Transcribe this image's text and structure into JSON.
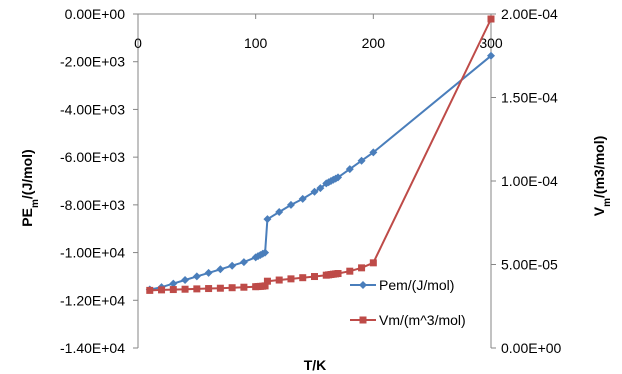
{
  "chart_data": {
    "type": "line",
    "xlabel": "T/K",
    "ylabel": {
      "main": "PE",
      "sub": "m",
      "rest": "/(J/mol)"
    },
    "y2label": {
      "main": "V",
      "sub": "m",
      "rest": "/(m3/mol)"
    },
    "xlim": [
      0,
      300
    ],
    "ylim": [
      -14000,
      0
    ],
    "y2lim": [
      0,
      0.0002
    ],
    "x_ticks": [
      0,
      100,
      200,
      300
    ],
    "x_tick_labels": [
      "0",
      "100",
      "200",
      "300"
    ],
    "y_ticks": [
      0,
      -2000,
      -4000,
      -6000,
      -8000,
      -10000,
      -12000,
      -14000
    ],
    "y_tick_labels": [
      "0.00E+00",
      "-2.00E+03",
      "-4.00E+03",
      "-6.00E+03",
      "-8.00E+03",
      "-1.00E+04",
      "-1.20E+04",
      "-1.40E+04"
    ],
    "y2_ticks": [
      0.0002,
      0.00015,
      0.0001,
      5e-05,
      0
    ],
    "y2_tick_labels": [
      "2.00E-04",
      "1.50E-04",
      "1.00E-04",
      "5.00E-05",
      "0.00E+00"
    ],
    "grid": false,
    "legend_position": "bottom-right",
    "series": [
      {
        "name": "Pem/(J/mol)",
        "axis": "left",
        "color": "#4a7ebb",
        "marker": "diamond",
        "x": [
          10,
          20,
          30,
          40,
          50,
          60,
          70,
          80,
          90,
          100,
          102,
          104,
          106,
          108,
          110,
          120,
          130,
          140,
          150,
          155,
          160,
          162,
          164,
          166,
          168,
          170,
          180,
          190,
          200,
          300
        ],
        "y": [
          -11550,
          -11450,
          -11300,
          -11150,
          -11000,
          -10850,
          -10700,
          -10550,
          -10400,
          -10200,
          -10150,
          -10100,
          -10050,
          -10000,
          -8600,
          -8300,
          -8000,
          -7750,
          -7450,
          -7300,
          -7100,
          -7050,
          -7000,
          -6950,
          -6900,
          -6850,
          -6500,
          -6150,
          -5800,
          -1750
        ]
      },
      {
        "name": "Vm/(m^3/mol)",
        "axis": "right",
        "color": "#be4b48",
        "marker": "square",
        "x": [
          10,
          20,
          30,
          40,
          50,
          60,
          70,
          80,
          90,
          100,
          102,
          104,
          106,
          108,
          110,
          120,
          130,
          140,
          150,
          160,
          162,
          164,
          166,
          168,
          170,
          180,
          190,
          200,
          300
        ],
        "y": [
          3.45e-05,
          3.48e-05,
          3.5e-05,
          3.52e-05,
          3.54e-05,
          3.56e-05,
          3.58e-05,
          3.61e-05,
          3.64e-05,
          3.67e-05,
          3.68e-05,
          3.69e-05,
          3.7e-05,
          3.72e-05,
          4e-05,
          4.07e-05,
          4.14e-05,
          4.21e-05,
          4.28e-05,
          4.36e-05,
          4.38e-05,
          4.4e-05,
          4.42e-05,
          4.44e-05,
          4.46e-05,
          4.6e-05,
          4.8e-05,
          5.1e-05,
          0.000197
        ]
      }
    ]
  }
}
